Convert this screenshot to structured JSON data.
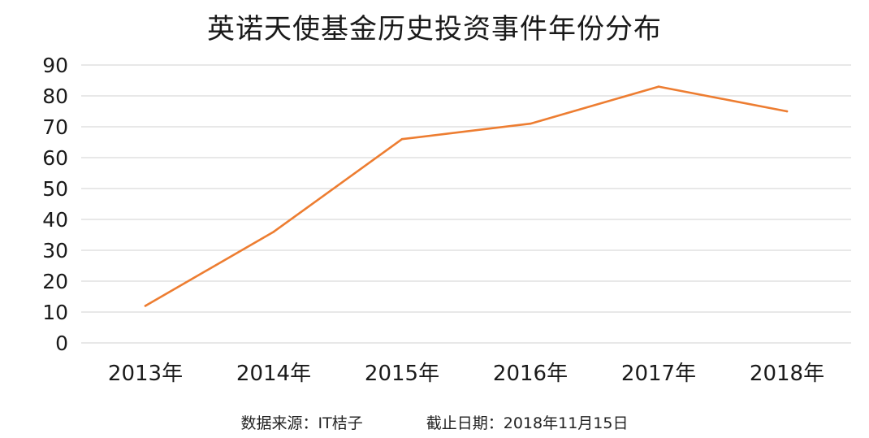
{
  "chart_data": {
    "type": "line",
    "title": "英诺天使基金历史投资事件年份分布",
    "xlabel": "",
    "ylabel": "",
    "categories": [
      "2013年",
      "2014年",
      "2015年",
      "2016年",
      "2017年",
      "2018年"
    ],
    "series": [
      {
        "values": [
          12,
          36,
          66,
          71,
          83,
          75
        ]
      }
    ],
    "ylim": [
      0,
      90
    ],
    "yticks": [
      0,
      10,
      20,
      30,
      40,
      50,
      60,
      70,
      80,
      90
    ],
    "grid": true,
    "line_color": "#ED7D31"
  },
  "footer": {
    "source": "数据来源：IT桔子",
    "cutoff": "截止日期：2018年11月15日"
  }
}
